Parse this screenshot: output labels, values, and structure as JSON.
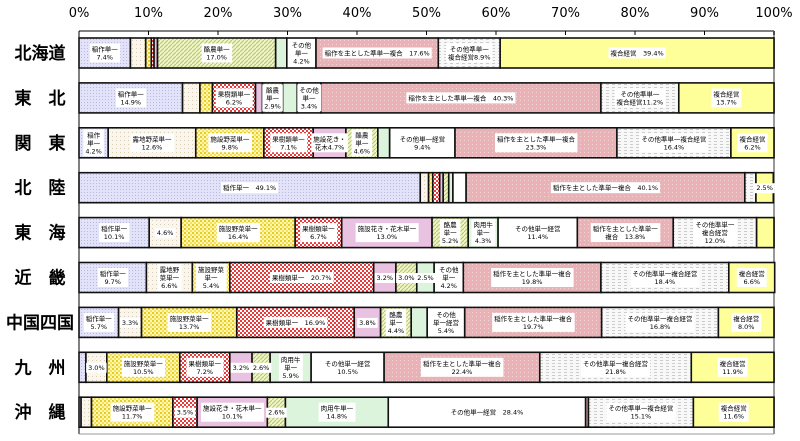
{
  "chart_data": {
    "type": "bar",
    "orientation": "horizontal",
    "stacked": "percent",
    "xlim": [
      0,
      100
    ],
    "x_ticks": [
      "0%",
      "10%",
      "20%",
      "30%",
      "40%",
      "50%",
      "60%",
      "70%",
      "80%",
      "90%",
      "100%"
    ],
    "grid": false,
    "categories": [
      "北海道",
      "東　北",
      "関　東",
      "北　陸",
      "東　海",
      "近　畿",
      "中国四国",
      "九　州",
      "沖　縄"
    ],
    "series_colors": [
      "#dcdcf6",
      "#f7f2e6",
      "#f2dc3c",
      "#e83a3a",
      "#e9c2e2",
      "#d4e49a",
      "#dcf4dc",
      "#ffffff",
      "#e8b2b6",
      "#eeeeee",
      "#ffff99"
    ],
    "rows": [
      {
        "values": [
          7.4,
          2.2,
          0.8,
          0.4,
          0.5,
          17.0,
          1.6,
          4.2,
          17.6,
          8.9,
          39.4
        ],
        "labels": [
          "稲作単一\n7.4%",
          null,
          null,
          null,
          null,
          "酪農単一\n17.0%",
          null,
          "その他\n単一\n4.2%",
          "稲作を主とした準単一複合　17.6%",
          "その他準単一\n複合経営8.9%",
          "複合経営　39.4%"
        ]
      },
      {
        "values": [
          14.9,
          2.5,
          1.8,
          6.2,
          1.0,
          2.9,
          2.1,
          3.4,
          40.3,
          11.2,
          13.7
        ],
        "labels": [
          "稲作単一\n14.9%",
          null,
          null,
          "果樹類単一\n6.2%",
          null,
          "酪農\n単一\n2.9%",
          null,
          "その他\n単一\n3.4%",
          "稲作を主とした準単一複合　40.3%",
          "その他準単一\n複合経営11.2%",
          "複合経営\n13.7%"
        ]
      },
      {
        "values": [
          4.2,
          12.6,
          9.8,
          7.1,
          4.7,
          4.6,
          1.7,
          9.4,
          23.3,
          16.4,
          6.2
        ],
        "labels": [
          "稲作\n単一\n4.2%",
          "露地野菜単一\n12.6%",
          "施設野菜単一\n9.8%",
          "果樹類単一\n7.1%",
          "施設花き・\n花木4.7%",
          "酪農\n単一\n4.6%",
          null,
          "その他単一経営\n9.4%",
          "稲作を主とした準単一複合\n23.3%",
          "その他準単一複合経営\n16.4%",
          "複合経営\n6.2%"
        ]
      },
      {
        "values": [
          49.1,
          1.2,
          0.6,
          1.0,
          0.5,
          0.8,
          0.6,
          1.9,
          40.1,
          1.6,
          2.5
        ],
        "labels": [
          "稲作単一　49.1%",
          null,
          null,
          null,
          null,
          null,
          null,
          null,
          "稲作を主とした準単一複合　40.1%",
          null,
          "2.5%"
        ]
      },
      {
        "values": [
          10.1,
          4.6,
          16.4,
          6.7,
          13.0,
          5.2,
          4.3,
          11.4,
          13.8,
          12.0,
          2.5
        ],
        "labels": [
          "稲作単一\n10.1%",
          "4.6%",
          "施設野菜単一\n16.4%",
          "果樹類単一\n6.7%",
          "施設花き・花木単一\n13.0%",
          "酪農\n単一\n5.2%",
          "肉用牛\n単一\n4.3%",
          "その他単一経営\n11.4%",
          "稲作を主とした準単一\n複合　13.8%",
          "その他準単一\n複合経営\n12.0%",
          null
        ]
      },
      {
        "values": [
          9.7,
          6.6,
          5.4,
          20.7,
          3.2,
          3.0,
          2.5,
          4.2,
          19.8,
          18.4,
          6.6
        ],
        "labels": [
          "稲作単一\n9.7%",
          "露地野\n菜単一\n6.6%",
          "施設野菜\n単一\n5.4%",
          "果樹類単一　20.7%",
          "3.2%",
          "3.0%",
          "2.5%",
          "その他\n単一\n4.2%",
          "稲作を主とした準単一複合\n19.8%",
          "その他準単一複合経営\n18.4%",
          "複合経営\n6.6%"
        ]
      },
      {
        "values": [
          5.7,
          3.3,
          13.7,
          16.9,
          3.8,
          4.4,
          2.3,
          5.4,
          19.7,
          16.8,
          8.0
        ],
        "labels": [
          "稲作単一\n5.7%",
          "3.3%",
          "施設野菜単一\n13.7%",
          "果樹類単一　16.9%",
          "3.8%",
          "酪農\n単一\n4.4%",
          null,
          "その他\n単一経営\n5.4%",
          "稲作を主とした準単一複合\n19.7%",
          "その他準単一複合経営\n16.8%",
          "複合経営\n8.0%"
        ]
      },
      {
        "values": [
          1.0,
          3.0,
          10.5,
          7.2,
          3.2,
          2.6,
          5.9,
          10.5,
          22.4,
          21.8,
          11.9
        ],
        "labels": [
          null,
          "3.0%",
          "施設野菜単一\n10.5%",
          "果樹類単一\n7.2%",
          "3.2%",
          "2.6%",
          "肉用牛\n単一\n5.9%",
          "その他単一経営\n10.5%",
          "稲作を主とした準単一複合\n22.4%",
          "その他準単一複合経営\n21.8%",
          "複合経営\n11.9%"
        ]
      },
      {
        "values": [
          0.3,
          1.5,
          11.7,
          3.5,
          10.1,
          2.6,
          14.8,
          28.4,
          0.4,
          15.1,
          11.6
        ],
        "labels": [
          null,
          null,
          "施設野菜単一\n11.7%",
          "3.5%",
          "施設花き・花木単一\n10.1%",
          "2.6%",
          "肉用牛単一\n14.8%",
          "その他単一経営　28.4%",
          null,
          "その他準単一複合経営\n15.1%",
          "複合経営\n11.6%"
        ]
      }
    ]
  }
}
